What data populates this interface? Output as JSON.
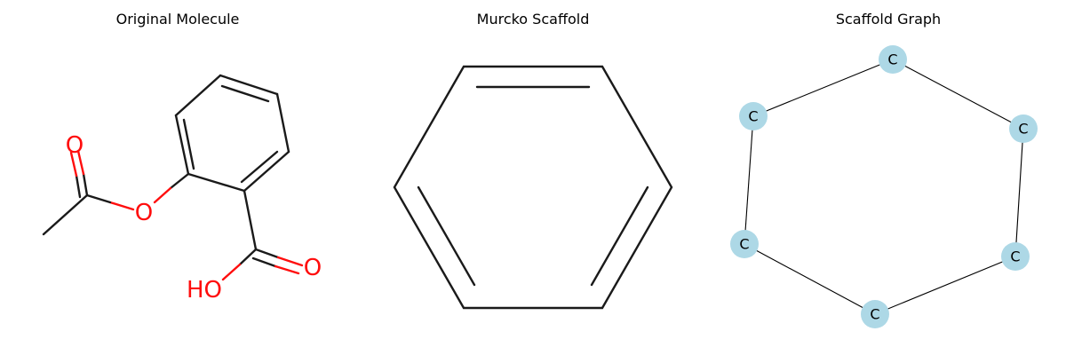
{
  "panels": [
    {
      "title": "Original Molecule"
    },
    {
      "title": "Murcko Scaffold"
    },
    {
      "title": "Scaffold Graph"
    }
  ],
  "molecule": {
    "atom_labels": {
      "carbonyl_o1": "O",
      "ester_o": "O",
      "carbonyl_o2": "O",
      "hydroxyl": "HO"
    }
  },
  "scaffold_graph": {
    "node_label": "C",
    "node_color": "#add8e6",
    "atom_color_oxygen": "#ff0d0d",
    "nodes": [
      "C",
      "C",
      "C",
      "C",
      "C",
      "C"
    ]
  }
}
